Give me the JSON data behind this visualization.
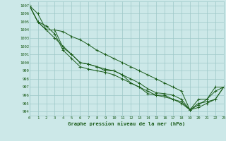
{
  "title": "Graphe pression niveau de la mer (hPa)",
  "bg_color": "#cce8e8",
  "grid_color": "#9ec8c8",
  "line_color": "#1a5c1a",
  "marker": "+",
  "xlim": [
    0,
    23
  ],
  "ylim": [
    993.5,
    1007.5
  ],
  "yticks": [
    994,
    995,
    996,
    997,
    998,
    999,
    1000,
    1001,
    1002,
    1003,
    1004,
    1005,
    1006,
    1007
  ],
  "xticks": [
    0,
    1,
    2,
    3,
    4,
    5,
    6,
    7,
    8,
    9,
    10,
    11,
    12,
    13,
    14,
    15,
    16,
    17,
    18,
    19,
    20,
    21,
    22,
    23
  ],
  "series": [
    [
      1007,
      1006,
      1004,
      1004,
      1001.8,
      1001,
      1000,
      999.8,
      999.5,
      999,
      999,
      998.5,
      997.5,
      997,
      996.5,
      996,
      996,
      995.5,
      995,
      994.2,
      995.5,
      995.5,
      997,
      997
    ],
    [
      1007,
      1005,
      1004.5,
      1003.5,
      1001.5,
      1000.5,
      999.5,
      999.2,
      999,
      998.8,
      998.5,
      998,
      997.5,
      997,
      996.2,
      996,
      995.8,
      995.5,
      995.2,
      994.2,
      995,
      995.2,
      995.5,
      997
    ],
    [
      1007,
      1005,
      1004,
      1003,
      1002,
      1001.0,
      1000,
      999.8,
      999.5,
      999.2,
      999,
      998.5,
      998,
      997.5,
      996.8,
      996.3,
      996.2,
      996,
      995.5,
      994.2,
      994.5,
      995,
      995.5,
      997
    ],
    [
      1007,
      1005,
      1004,
      1004,
      1003.8,
      1003.2,
      1002.8,
      1002.2,
      1001.5,
      1001,
      1000.5,
      1000,
      999.5,
      999.0,
      998.5,
      998.0,
      997.5,
      997.0,
      996.5,
      994.2,
      994.8,
      995.5,
      996.5,
      997
    ]
  ]
}
